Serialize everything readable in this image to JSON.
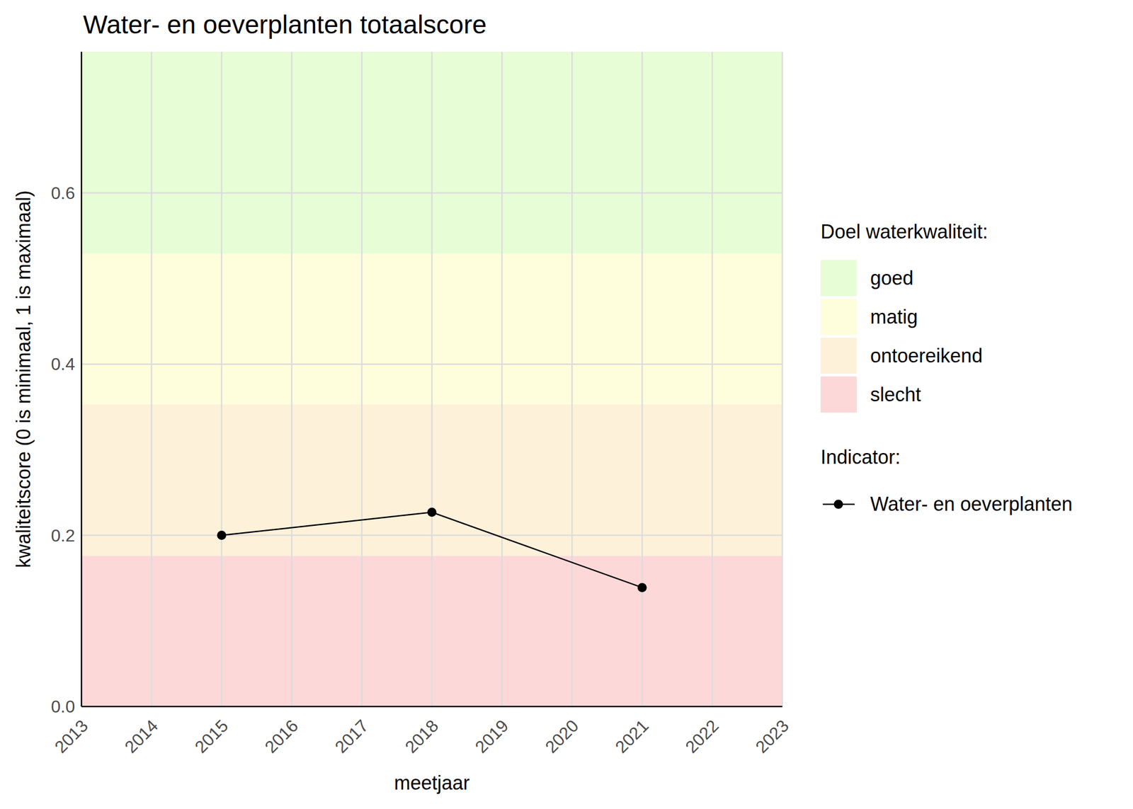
{
  "chart_data": {
    "type": "line",
    "title": "Water- en oeverplanten totaalscore",
    "x_label": "meetjaar",
    "y_label": "kwaliteitscore (0 is minimaal, 1 is maximaal)",
    "x": [
      2015,
      2018,
      2021
    ],
    "series": [
      {
        "name": "Water- en oeverplanten",
        "color": "#000000",
        "marker": "circle",
        "line_style": "solid",
        "values": [
          0.2,
          0.227,
          0.139
        ]
      }
    ],
    "xlim": [
      2013,
      2023
    ],
    "xticks": [
      2013,
      2014,
      2015,
      2016,
      2017,
      2018,
      2019,
      2020,
      2021,
      2022,
      2023
    ],
    "ylim": [
      0,
      0.765
    ],
    "yticks": [
      {
        "value": 0,
        "label": "0.0"
      },
      0.2,
      0.4,
      0.6
    ],
    "grid": true,
    "band_legend_title": "Doel waterkwaliteit:",
    "series_legend_title": "Indicator:",
    "bands": [
      {
        "name": "goed",
        "color": "#e7fdd6",
        "range": [
          0.529,
          0.765
        ]
      },
      {
        "name": "matig",
        "color": "#fefddc",
        "range": [
          0.353,
          0.529
        ]
      },
      {
        "name": "ontoereikend",
        "color": "#fdf1d9",
        "range": [
          0.176,
          0.353
        ]
      },
      {
        "name": "slecht",
        "color": "#fdd8d9",
        "range": [
          0,
          0.176
        ]
      }
    ]
  }
}
